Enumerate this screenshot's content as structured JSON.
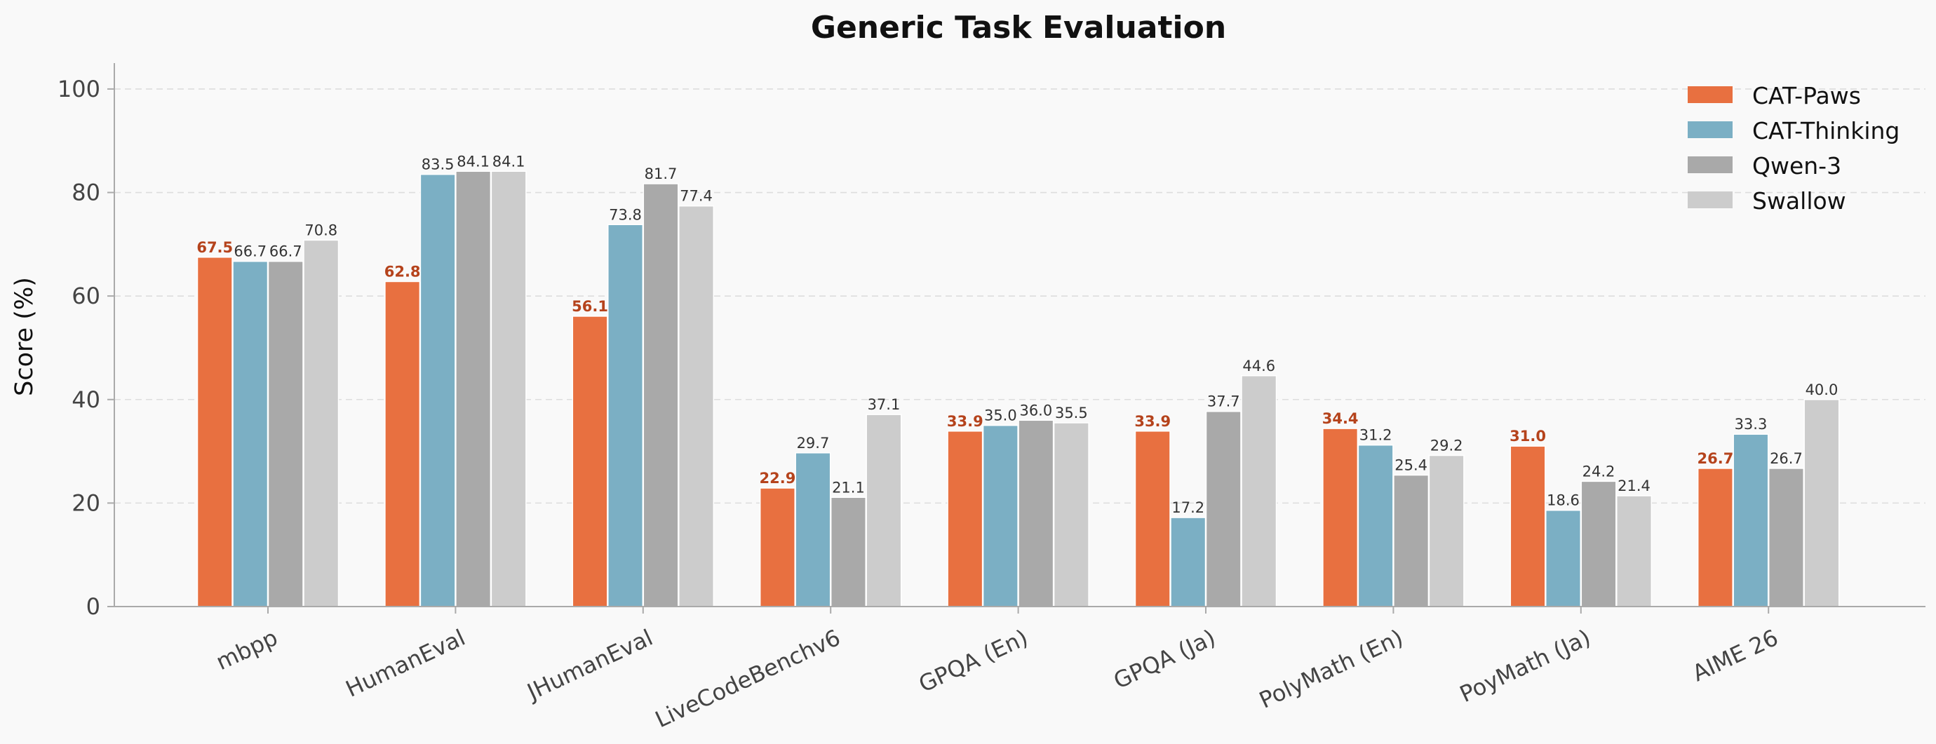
{
  "chart_data": {
    "type": "bar",
    "title": "Generic Task Evaluation",
    "xlabel": "",
    "ylabel": "Score (%)",
    "ylim": [
      0,
      105
    ],
    "yticks": [
      0,
      20,
      40,
      60,
      80,
      100
    ],
    "grid": true,
    "legend_position": "top-right",
    "categories": [
      "mbpp",
      "HumanEval",
      "JHumanEval",
      "LiveCodeBenchv6",
      "GPQA (En)",
      "GPQA (Ja)",
      "PolyMath (En)",
      "PoyMath (Ja)",
      "AIME 26"
    ],
    "series": [
      {
        "name": "CAT-Paws",
        "color": "#e87040",
        "label_color": "#b5431c",
        "highlight_labels": true,
        "values": [
          67.5,
          62.8,
          56.1,
          22.9,
          33.9,
          33.9,
          34.4,
          31.0,
          26.7
        ]
      },
      {
        "name": "CAT-Thinking",
        "color": "#7bafc4",
        "highlight_labels": false,
        "values": [
          66.7,
          83.5,
          73.8,
          29.7,
          35.0,
          17.2,
          31.2,
          18.6,
          33.3
        ]
      },
      {
        "name": "Qwen-3",
        "color": "#a9a9a9",
        "highlight_labels": false,
        "values": [
          66.7,
          84.1,
          81.7,
          21.1,
          36.0,
          37.7,
          25.4,
          24.2,
          26.7
        ]
      },
      {
        "name": "Swallow",
        "color": "#cccccc",
        "highlight_labels": false,
        "values": [
          70.8,
          84.1,
          77.4,
          37.1,
          35.5,
          44.6,
          29.2,
          21.4,
          40.0
        ]
      }
    ]
  }
}
